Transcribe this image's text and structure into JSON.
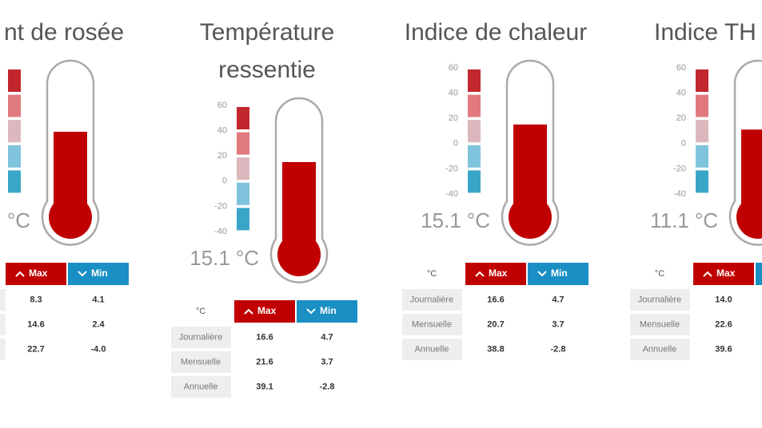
{
  "panels": [
    {
      "title": [
        "nt de rosée"
      ],
      "unit": "°C",
      "header": {
        "max": "Max",
        "min": "Min"
      },
      "rows": [
        {
          "max": "8.3",
          "min": "4.1"
        },
        {
          "max": "14.6",
          "min": "2.4"
        },
        {
          "max": "22.7",
          "min": "-4.0"
        }
      ]
    },
    {
      "title": [
        "Température",
        "ressentie"
      ],
      "scale": [
        60,
        40,
        20,
        0,
        -20,
        -40
      ],
      "value": 15.1,
      "unit": "°C",
      "header": {
        "corner": "°C",
        "max": "Max",
        "min": "Min"
      },
      "rows": [
        {
          "label": "Journalière",
          "max": "16.6",
          "min": "4.7"
        },
        {
          "label": "Mensuelle",
          "max": "21.6",
          "min": "3.7"
        },
        {
          "label": "Annuelle",
          "max": "39.1",
          "min": "-2.8"
        }
      ]
    },
    {
      "title": [
        "Indice de chaleur"
      ],
      "scale": [
        60,
        40,
        20,
        0,
        -20,
        -40
      ],
      "value": 15.1,
      "unit": "°C",
      "header": {
        "corner": "°C",
        "max": "Max",
        "min": "Min"
      },
      "rows": [
        {
          "label": "Journalière",
          "max": "16.6",
          "min": "4.7"
        },
        {
          "label": "Mensuelle",
          "max": "20.7",
          "min": "3.7"
        },
        {
          "label": "Annuelle",
          "max": "38.8",
          "min": "-2.8"
        }
      ]
    },
    {
      "title": [
        "Indice TH"
      ],
      "scale": [
        60,
        40,
        20,
        0,
        -20,
        -40
      ],
      "value": 11.1,
      "unit": "°C",
      "header": {
        "corner": "°C",
        "max": "Max"
      },
      "rows": [
        {
          "label": "Journalière",
          "max": "14.0"
        },
        {
          "label": "Mensuelle",
          "max": "22.6"
        },
        {
          "label": "Annuelle",
          "max": "39.6"
        }
      ]
    }
  ]
}
